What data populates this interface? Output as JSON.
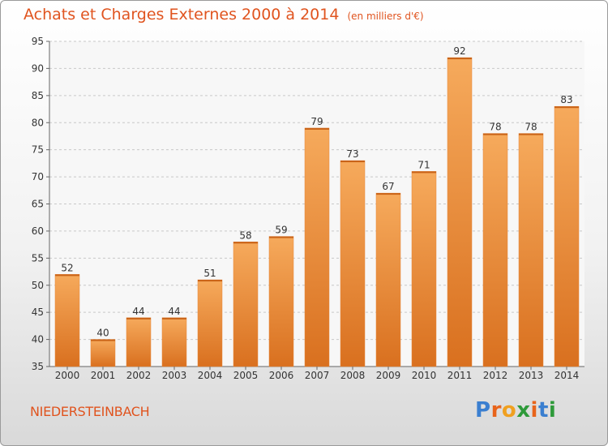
{
  "header": {
    "title": "Achats et Charges Externes 2000 à 2014",
    "unit": "(en milliers d'€)"
  },
  "footer": {
    "town": "NIEDERSTEINBACH",
    "logo_text": "Proxiti",
    "logo_colors": [
      "#3b7fd0",
      "#e8641b",
      "#f0a020",
      "#2e9a3a",
      "#e8641b",
      "#3b7fd0",
      "#2e9a3a"
    ]
  },
  "chart_data": {
    "type": "bar",
    "title": "Achats et Charges Externes 2000 à 2014",
    "subtitle": "(en milliers d'€)",
    "categories": [
      "2000",
      "2001",
      "2002",
      "2003",
      "2004",
      "2005",
      "2006",
      "2007",
      "2008",
      "2009",
      "2010",
      "2011",
      "2012",
      "2013",
      "2014"
    ],
    "values": [
      52,
      40,
      44,
      44,
      51,
      58,
      59,
      79,
      73,
      67,
      71,
      92,
      78,
      78,
      83
    ],
    "ylim": [
      35,
      95
    ],
    "yticks": [
      35,
      40,
      45,
      50,
      55,
      60,
      65,
      70,
      75,
      80,
      85,
      90,
      95
    ],
    "grid": true,
    "bar_color": "#f0923a",
    "bar_color_light": "#f6aa5c",
    "bar_color_dark": "#d9701f",
    "xlabel": "",
    "ylabel": ""
  }
}
